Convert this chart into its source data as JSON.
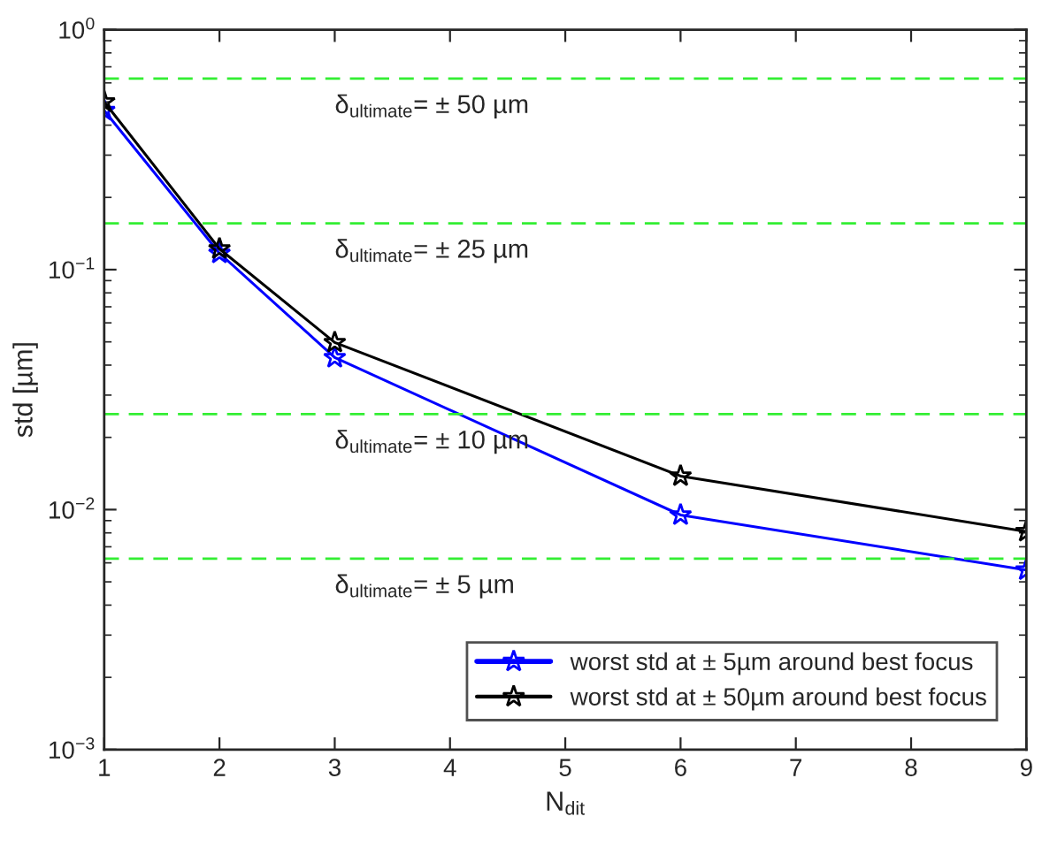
{
  "chart_data": {
    "type": "line",
    "xlabel": "N$_{dit}$",
    "ylabel": "std [µm]",
    "x": [
      1,
      2,
      3,
      6,
      9
    ],
    "series": [
      {
        "name": "worst std at ± 5µm around best focus",
        "color": "#0000ff",
        "values": [
          0.46,
          0.117,
          0.043,
          0.0095,
          0.0056
        ]
      },
      {
        "name": "worst std at ± 50µm around best focus",
        "color": "#000000",
        "values": [
          0.5,
          0.122,
          0.0497,
          0.0138,
          0.0081
        ]
      }
    ],
    "log": "y",
    "xlim": [
      1,
      9
    ],
    "ylim": [
      0.001,
      1
    ],
    "xticks": [
      1,
      2,
      3,
      4,
      5,
      6,
      7,
      8,
      9
    ],
    "yticks": [
      {
        "value": 0.001,
        "label": "10$^{−3}$"
      },
      {
        "value": 0.01,
        "label": "10$^{−2}$"
      },
      {
        "value": 0.1,
        "label": "10$^{−1}$"
      },
      {
        "value": 1,
        "label": "10$^{0}$"
      }
    ],
    "ref_lines": [
      {
        "axis": "y",
        "value": 0.625,
        "label": "δ$_{ultimate}$= ± 50 µm",
        "color": "#33ee33",
        "line_style": "dashed"
      },
      {
        "axis": "y",
        "value": 0.156,
        "label": "δ$_{ultimate}$= ± 25 µm",
        "color": "#33ee33",
        "line_style": "dashed"
      },
      {
        "axis": "y",
        "value": 0.025,
        "label": "δ$_{ultimate}$= ± 10 µm",
        "color": "#33ee33",
        "line_style": "dashed"
      },
      {
        "axis": "y",
        "value": 0.00625,
        "label": "δ$_{ultimate}$= ± 5 µm",
        "color": "#33ee33",
        "line_style": "dashed"
      }
    ],
    "grid": false,
    "legend": "bottom right",
    "marker": "star",
    "line_style": "solid"
  }
}
